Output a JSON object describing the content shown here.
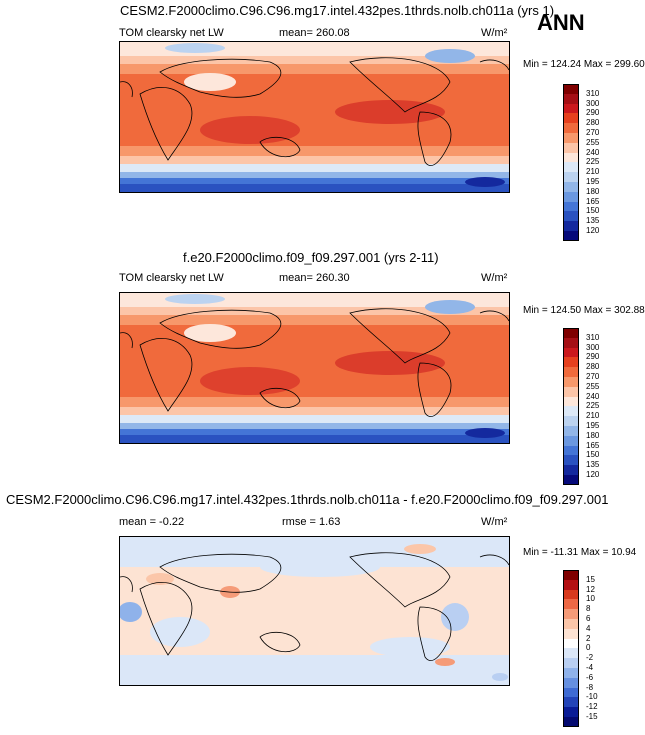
{
  "ann_label": "ANN",
  "units": "W/m²",
  "panels": [
    {
      "title": "CESM2.F2000climo.C96.C96.mg17.intel.432pes.1thrds.nolb.ch011a (yrs 1)",
      "variable": "TOM clearsky net LW",
      "stat": "mean= 260.08",
      "minmax": "Min = 124.24 Max = 299.60",
      "levels": [
        "310",
        "300",
        "290",
        "280",
        "270",
        "255",
        "240",
        "225",
        "210",
        "195",
        "180",
        "165",
        "150",
        "135",
        "120"
      ]
    },
    {
      "title": "f.e20.F2000climo.f09_f09.297.001 (yrs 2-11)",
      "variable": "TOM clearsky net LW",
      "stat": "mean= 260.30",
      "minmax": "Min = 124.50 Max = 302.88",
      "levels": [
        "310",
        "300",
        "290",
        "280",
        "270",
        "255",
        "240",
        "225",
        "210",
        "195",
        "180",
        "165",
        "150",
        "135",
        "120"
      ]
    },
    {
      "title": "CESM2.F2000climo.C96.C96.mg17.intel.432pes.1thrds.nolb.ch011a - f.e20.F2000climo.f09_f09.297.001",
      "variable": "",
      "stat": "mean =  -0.22",
      "rmse": "rmse =  1.63",
      "minmax": "Min = -11.31 Max =  10.94",
      "levels": [
        "15",
        "12",
        "10",
        "8",
        "6",
        "4",
        "2",
        "0",
        "-2",
        "-4",
        "-6",
        "-8",
        "-10",
        "-12",
        "-15"
      ]
    }
  ],
  "colors": {
    "abs_scale": [
      "#7f0000",
      "#a50f15",
      "#cb181d",
      "#e6401e",
      "#f06a3c",
      "#f7986b",
      "#fcc5a8",
      "#fde7db",
      "#dde9f7",
      "#bcd3f0",
      "#92b6e8",
      "#6b98e0",
      "#4475d6",
      "#2a52c0",
      "#14299e",
      "#060a7a"
    ],
    "diff_scale": [
      "#7f0000",
      "#b31013",
      "#d83a1e",
      "#ed6845",
      "#f59b78",
      "#fbc6a9",
      "#fde3d3",
      "#ffffff",
      "#dbe7f8",
      "#b9cff2",
      "#8fb2ea",
      "#6690e0",
      "#3f6bd3",
      "#2344b8",
      "#0a1c96",
      "#040a70"
    ]
  }
}
